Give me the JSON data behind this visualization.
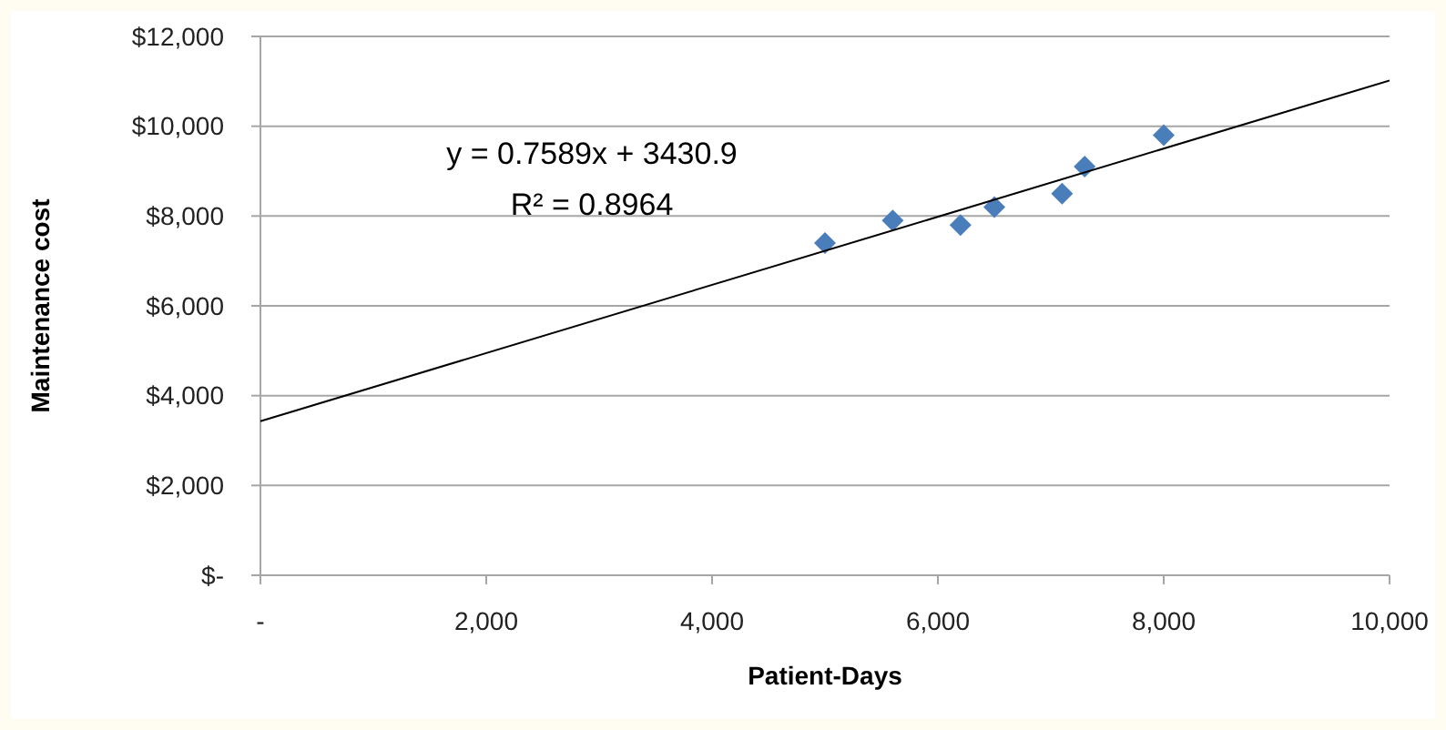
{
  "chart_data": {
    "type": "scatter",
    "xlabel": "Patient-Days",
    "ylabel": "Maintenance cost",
    "annotations": [
      "y = 0.7589x + 3430.9",
      "R² = 0.8964"
    ],
    "series": [
      {
        "color": "#4a7ebb",
        "x": [
          5000,
          5600,
          6200,
          6500,
          7100,
          7300,
          8000
        ],
        "values": [
          7400,
          7900,
          7800,
          8200,
          8500,
          9100,
          9800
        ],
        "marker": "diamond"
      },
      {
        "type": "line",
        "color": "#000000",
        "x": [
          0,
          10000
        ],
        "values": [
          3430,
          11020
        ],
        "marker": "none",
        "line_style": "solid"
      }
    ],
    "xlim": [
      0,
      10000
    ],
    "xticks": [
      {
        "value": 0,
        "label": "-"
      },
      {
        "value": 2000,
        "label": "2,000"
      },
      {
        "value": 4000,
        "label": "4,000"
      },
      {
        "value": 6000,
        "label": "6,000"
      },
      {
        "value": 8000,
        "label": "8,000"
      },
      {
        "value": 10000,
        "label": "10,000"
      }
    ],
    "ylim": [
      0,
      12000
    ],
    "yticks": [
      {
        "value": 0,
        "label": "$-"
      },
      {
        "value": 2000,
        "label": "$2,000"
      },
      {
        "value": 4000,
        "label": "$4,000"
      },
      {
        "value": 6000,
        "label": "$6,000"
      },
      {
        "value": 8000,
        "label": "$8,000"
      },
      {
        "value": 10000,
        "label": "$10,000"
      },
      {
        "value": 12000,
        "label": "$12,000"
      }
    ],
    "grid": "y"
  }
}
